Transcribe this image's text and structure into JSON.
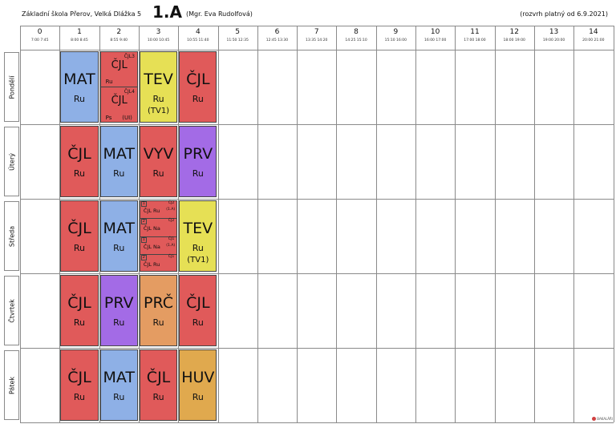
{
  "header": {
    "school": "Základní škola Přerov, Velká Dlážka 5",
    "class_name": "1.A",
    "teacher": "(Mgr. Eva Rudolfová)",
    "valid_from": "(rozvrh platný od 6.9.2021)"
  },
  "periods": [
    {
      "num": "0",
      "time": "7:00  7:45"
    },
    {
      "num": "1",
      "time": "8:00  8:45"
    },
    {
      "num": "2",
      "time": "8:55  9:40"
    },
    {
      "num": "3",
      "time": "10:00 10:45"
    },
    {
      "num": "4",
      "time": "10:55 11:40"
    },
    {
      "num": "5",
      "time": "11:50 12:35"
    },
    {
      "num": "6",
      "time": "12:45 13:30"
    },
    {
      "num": "7",
      "time": "13:35 14:20"
    },
    {
      "num": "8",
      "time": "14:25 15:10"
    },
    {
      "num": "9",
      "time": "15:10 16:00"
    },
    {
      "num": "10",
      "time": "16:00 17:00"
    },
    {
      "num": "11",
      "time": "17:00 18:00"
    },
    {
      "num": "12",
      "time": "18:00 19:00"
    },
    {
      "num": "13",
      "time": "19:00 20:00"
    },
    {
      "num": "14",
      "time": "20:00 21:00"
    }
  ],
  "days": [
    "Pondělí",
    "Úterý",
    "Středa",
    "Čtvrtek",
    "Pátek"
  ],
  "lessons": {
    "mon": {
      "p1": {
        "subject": "MAT",
        "room": "Ru"
      },
      "p2": [
        {
          "group": "ČJL3",
          "subject": "ČJL",
          "teacher": "Ru",
          "room": ""
        },
        {
          "group": "ČJL4",
          "subject": "ČJL",
          "teacher": "Ps",
          "room": "(UI)"
        }
      ],
      "p3": {
        "subject": "TEV",
        "room": "Ru",
        "extra": "(TV1)"
      },
      "p4": {
        "subject": "ČJL",
        "room": "Ru"
      }
    },
    "tue": {
      "p1": {
        "subject": "ČJL",
        "room": "Ru"
      },
      "p2": {
        "subject": "MAT",
        "room": "Ru"
      },
      "p3": {
        "subject": "VYV",
        "room": "Ru"
      },
      "p4": {
        "subject": "PRV",
        "room": "Ru"
      }
    },
    "wed": {
      "p1": {
        "subject": "ČJL",
        "room": "Ru"
      },
      "p2": {
        "subject": "MAT",
        "room": "Ru"
      },
      "p3": [
        {
          "badge": "1",
          "group": "ČJ2",
          "label": "ČJL  Ru",
          "ext": "(1.A)"
        },
        {
          "badge": "2",
          "group": "ČJ2",
          "label": "ČJL  Na",
          "ext": ""
        },
        {
          "badge": "1",
          "group": "ČJ1",
          "label": "ČJL  Na",
          "ext": "(1.A)"
        },
        {
          "badge": "2",
          "group": "ČJ1",
          "label": "ČJL  Ru",
          "ext": ""
        }
      ],
      "p4": {
        "subject": "TEV",
        "room": "Ru",
        "extra": "(TV1)"
      }
    },
    "thu": {
      "p1": {
        "subject": "ČJL",
        "room": "Ru"
      },
      "p2": {
        "subject": "PRV",
        "room": "Ru"
      },
      "p3": {
        "subject": "PRČ",
        "room": "Ru"
      },
      "p4": {
        "subject": "ČJL",
        "room": "Ru"
      }
    },
    "fri": {
      "p1": {
        "subject": "ČJL",
        "room": "Ru"
      },
      "p2": {
        "subject": "MAT",
        "room": "Ru"
      },
      "p3": {
        "subject": "ČJL",
        "room": "Ru"
      },
      "p4": {
        "subject": "HUV",
        "room": "Ru"
      }
    }
  },
  "colors": {
    "CJL": "#e05a5a",
    "MAT": "#8eb0e6",
    "TEV": "#e6e055",
    "PRV": "#a36be6",
    "VYV": "#e05a5a",
    "PRC": "#e49c62",
    "HUV": "#e0a94e"
  },
  "logo_text": "BAKALÁŘI"
}
